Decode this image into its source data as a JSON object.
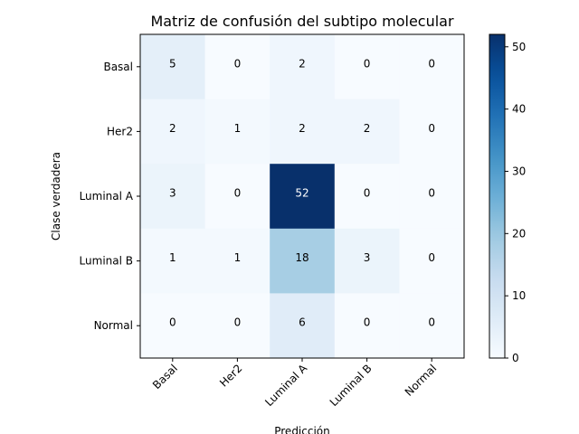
{
  "chart_data": {
    "type": "heatmap",
    "title": "Matriz de confusión del subtipo molecular",
    "xlabel": "Predicción",
    "ylabel": "Clase verdadera",
    "x_categories": [
      "Basal",
      "Her2",
      "Luminal A",
      "Luminal B",
      "Normal"
    ],
    "y_categories": [
      "Basal",
      "Her2",
      "Luminal A",
      "Luminal B",
      "Normal"
    ],
    "values": [
      [
        5,
        0,
        2,
        0,
        0
      ],
      [
        2,
        1,
        2,
        2,
        0
      ],
      [
        3,
        0,
        52,
        0,
        0
      ],
      [
        1,
        1,
        18,
        3,
        0
      ],
      [
        0,
        0,
        6,
        0,
        0
      ]
    ],
    "colormap": "Blues",
    "color_range": [
      0,
      52
    ],
    "colorbar_ticks": [
      0,
      10,
      20,
      30,
      40,
      50
    ],
    "grid": false
  }
}
